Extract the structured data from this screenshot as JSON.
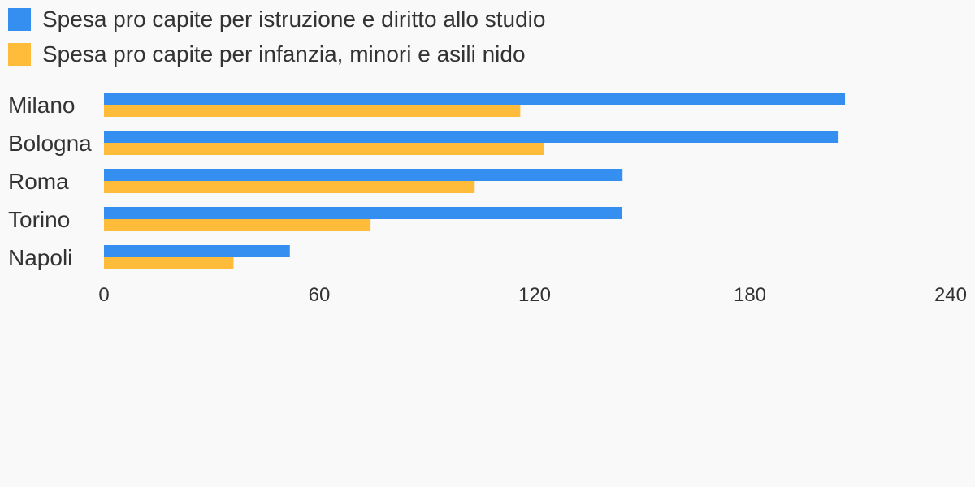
{
  "colors": {
    "background": "#f9f9f9",
    "text": "#333333"
  },
  "chart_data": {
    "type": "bar",
    "orientation": "horizontal",
    "categories": [
      "Milano",
      "Bologna",
      "Roma",
      "Torino",
      "Napoli"
    ],
    "series": [
      {
        "name": "Spesa pro capite per istruzione e diritto allo studio",
        "color": "#348ff0",
        "values": [
          206.5,
          204.7,
          144.5,
          144.3,
          51.8
        ]
      },
      {
        "name": "Spesa pro capite per infanzia, minori e asili nido",
        "color": "#ffbb3a",
        "values": [
          116.0,
          122.6,
          103.3,
          74.3,
          36.1
        ]
      }
    ],
    "xlim": [
      0,
      240
    ],
    "xticks": [
      "0",
      "60",
      "120",
      "180",
      "240"
    ],
    "xtick_values": [
      0,
      60,
      120,
      180,
      240
    ],
    "legend_position": "top-left",
    "grid": false
  }
}
